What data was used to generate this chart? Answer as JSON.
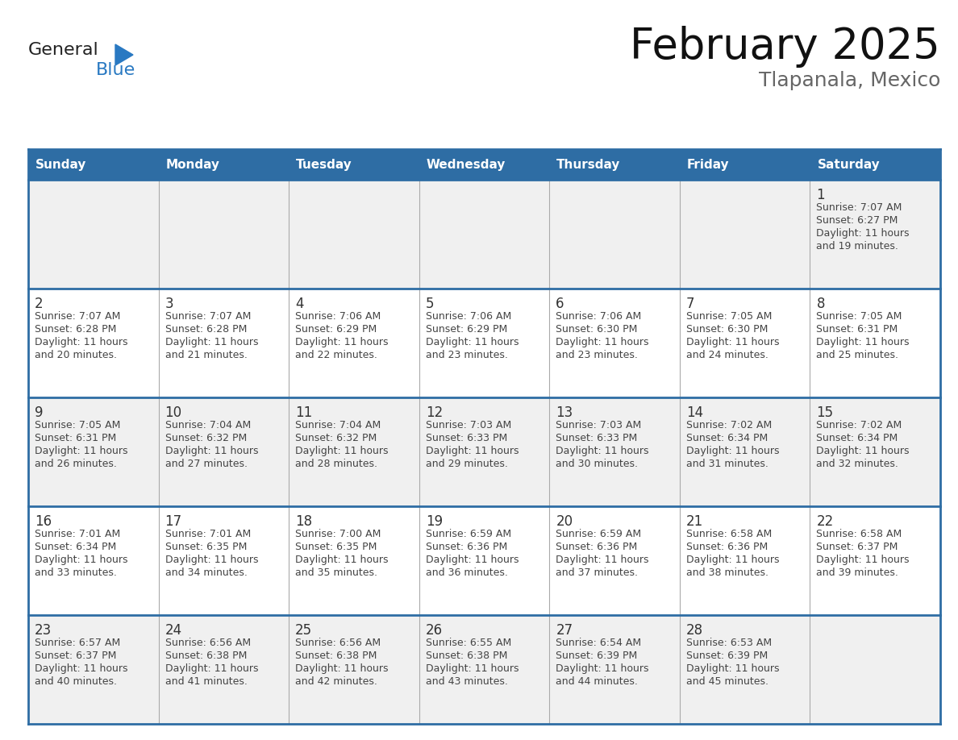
{
  "title": "February 2025",
  "subtitle": "Tlapanala, Mexico",
  "header_bg": "#2E6DA4",
  "header_text_color": "#FFFFFF",
  "cell_bg_odd": "#F0F0F0",
  "cell_bg_even": "#FFFFFF",
  "border_color_thick": "#2E6DA4",
  "border_color_thin": "#AAAAAA",
  "text_color": "#444444",
  "day_number_color": "#333333",
  "days_of_week": [
    "Sunday",
    "Monday",
    "Tuesday",
    "Wednesday",
    "Thursday",
    "Friday",
    "Saturday"
  ],
  "logo_general_color": "#222222",
  "logo_blue_color": "#2979C2",
  "calendar_data": [
    [
      null,
      null,
      null,
      null,
      null,
      null,
      {
        "day": 1,
        "sunrise": "7:07 AM",
        "sunset": "6:27 PM",
        "daylight": "11 hours and 19 minutes."
      }
    ],
    [
      {
        "day": 2,
        "sunrise": "7:07 AM",
        "sunset": "6:28 PM",
        "daylight": "11 hours and 20 minutes."
      },
      {
        "day": 3,
        "sunrise": "7:07 AM",
        "sunset": "6:28 PM",
        "daylight": "11 hours and 21 minutes."
      },
      {
        "day": 4,
        "sunrise": "7:06 AM",
        "sunset": "6:29 PM",
        "daylight": "11 hours and 22 minutes."
      },
      {
        "day": 5,
        "sunrise": "7:06 AM",
        "sunset": "6:29 PM",
        "daylight": "11 hours and 23 minutes."
      },
      {
        "day": 6,
        "sunrise": "7:06 AM",
        "sunset": "6:30 PM",
        "daylight": "11 hours and 23 minutes."
      },
      {
        "day": 7,
        "sunrise": "7:05 AM",
        "sunset": "6:30 PM",
        "daylight": "11 hours and 24 minutes."
      },
      {
        "day": 8,
        "sunrise": "7:05 AM",
        "sunset": "6:31 PM",
        "daylight": "11 hours and 25 minutes."
      }
    ],
    [
      {
        "day": 9,
        "sunrise": "7:05 AM",
        "sunset": "6:31 PM",
        "daylight": "11 hours and 26 minutes."
      },
      {
        "day": 10,
        "sunrise": "7:04 AM",
        "sunset": "6:32 PM",
        "daylight": "11 hours and 27 minutes."
      },
      {
        "day": 11,
        "sunrise": "7:04 AM",
        "sunset": "6:32 PM",
        "daylight": "11 hours and 28 minutes."
      },
      {
        "day": 12,
        "sunrise": "7:03 AM",
        "sunset": "6:33 PM",
        "daylight": "11 hours and 29 minutes."
      },
      {
        "day": 13,
        "sunrise": "7:03 AM",
        "sunset": "6:33 PM",
        "daylight": "11 hours and 30 minutes."
      },
      {
        "day": 14,
        "sunrise": "7:02 AM",
        "sunset": "6:34 PM",
        "daylight": "11 hours and 31 minutes."
      },
      {
        "day": 15,
        "sunrise": "7:02 AM",
        "sunset": "6:34 PM",
        "daylight": "11 hours and 32 minutes."
      }
    ],
    [
      {
        "day": 16,
        "sunrise": "7:01 AM",
        "sunset": "6:34 PM",
        "daylight": "11 hours and 33 minutes."
      },
      {
        "day": 17,
        "sunrise": "7:01 AM",
        "sunset": "6:35 PM",
        "daylight": "11 hours and 34 minutes."
      },
      {
        "day": 18,
        "sunrise": "7:00 AM",
        "sunset": "6:35 PM",
        "daylight": "11 hours and 35 minutes."
      },
      {
        "day": 19,
        "sunrise": "6:59 AM",
        "sunset": "6:36 PM",
        "daylight": "11 hours and 36 minutes."
      },
      {
        "day": 20,
        "sunrise": "6:59 AM",
        "sunset": "6:36 PM",
        "daylight": "11 hours and 37 minutes."
      },
      {
        "day": 21,
        "sunrise": "6:58 AM",
        "sunset": "6:36 PM",
        "daylight": "11 hours and 38 minutes."
      },
      {
        "day": 22,
        "sunrise": "6:58 AM",
        "sunset": "6:37 PM",
        "daylight": "11 hours and 39 minutes."
      }
    ],
    [
      {
        "day": 23,
        "sunrise": "6:57 AM",
        "sunset": "6:37 PM",
        "daylight": "11 hours and 40 minutes."
      },
      {
        "day": 24,
        "sunrise": "6:56 AM",
        "sunset": "6:38 PM",
        "daylight": "11 hours and 41 minutes."
      },
      {
        "day": 25,
        "sunrise": "6:56 AM",
        "sunset": "6:38 PM",
        "daylight": "11 hours and 42 minutes."
      },
      {
        "day": 26,
        "sunrise": "6:55 AM",
        "sunset": "6:38 PM",
        "daylight": "11 hours and 43 minutes."
      },
      {
        "day": 27,
        "sunrise": "6:54 AM",
        "sunset": "6:39 PM",
        "daylight": "11 hours and 44 minutes."
      },
      {
        "day": 28,
        "sunrise": "6:53 AM",
        "sunset": "6:39 PM",
        "daylight": "11 hours and 45 minutes."
      },
      null
    ]
  ]
}
